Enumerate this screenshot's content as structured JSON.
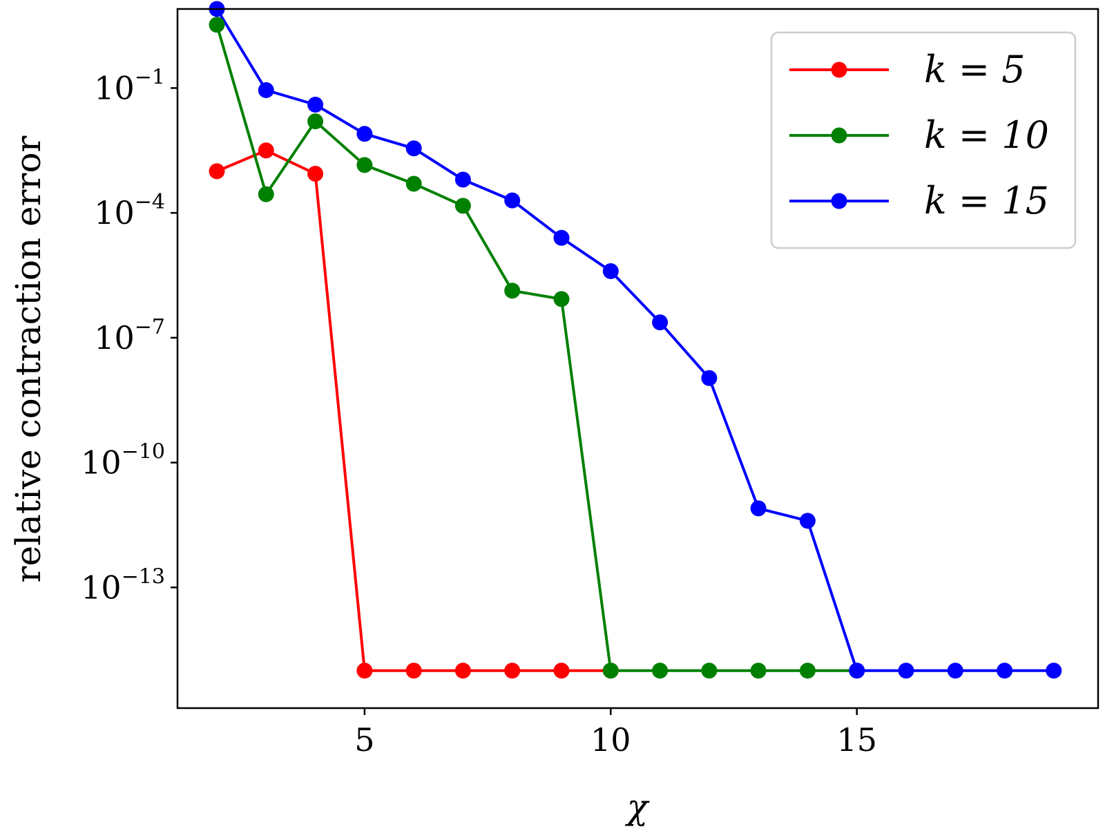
{
  "chart_data": {
    "type": "line",
    "xlabel": "χ",
    "ylabel": "relative contraction error",
    "yscale": "log",
    "xlim": [
      1.2,
      19.9
    ],
    "ylim_log10": [
      -15.9,
      0.9
    ],
    "xticks": [
      {
        "value": 5,
        "label": "5"
      },
      {
        "value": 10,
        "label": "10"
      },
      {
        "value": 15,
        "label": "15"
      }
    ],
    "yticks": [
      {
        "exp": -1,
        "base": "10",
        "sup": "−1"
      },
      {
        "exp": -4,
        "base": "10",
        "sup": "−4"
      },
      {
        "exp": -7,
        "base": "10",
        "sup": "−7"
      },
      {
        "exp": -10,
        "base": "10",
        "sup": "−10"
      },
      {
        "exp": -13,
        "base": "10",
        "sup": "−13"
      }
    ],
    "grid": false,
    "legend": {
      "position": "top-right"
    },
    "series": [
      {
        "name": "k = 5",
        "color": "#ff0000",
        "x": [
          2,
          3,
          4,
          5,
          6,
          7,
          8,
          9,
          10
        ],
        "log10_y": [
          -3.0,
          -2.5,
          -3.06,
          -15.0,
          -15.0,
          -15.0,
          -15.0,
          -15.0,
          -15.0
        ]
      },
      {
        "name": "k = 10",
        "color": "#008000",
        "x": [
          2,
          3,
          4,
          5,
          6,
          7,
          8,
          9,
          10,
          11,
          12,
          13,
          14,
          15
        ],
        "log10_y": [
          0.52,
          -3.55,
          -1.8,
          -2.85,
          -3.3,
          -3.83,
          -5.87,
          -6.07,
          -15.0,
          -15.0,
          -15.0,
          -15.0,
          -15.0,
          -15.0
        ]
      },
      {
        "name": "k = 15",
        "color": "#0000ff",
        "x": [
          2,
          3,
          4,
          5,
          6,
          7,
          8,
          9,
          10,
          11,
          12,
          13,
          14,
          15,
          16,
          17,
          18,
          19
        ],
        "log10_y": [
          0.9,
          -1.05,
          -1.4,
          -2.1,
          -2.45,
          -3.2,
          -3.7,
          -4.6,
          -5.4,
          -6.63,
          -7.97,
          -11.1,
          -11.4,
          -15.0,
          -15.0,
          -15.0,
          -15.0,
          -15.0
        ]
      }
    ]
  }
}
